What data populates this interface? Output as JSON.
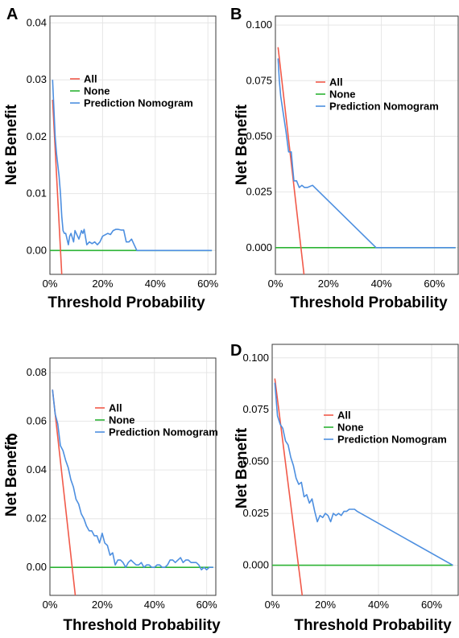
{
  "chart_data": [
    {
      "type": "line",
      "panel": "A",
      "xlabel": "Threshold Probability",
      "ylabel": "Net Benefit",
      "xlim": [
        0,
        0.63
      ],
      "ylim": [
        -0.0042,
        0.0412
      ],
      "xticks": [
        0,
        0.2,
        0.4,
        0.6
      ],
      "xtick_labels": [
        "0%",
        "20%",
        "40%",
        "60%"
      ],
      "yticks": [
        0.0,
        0.01,
        0.02,
        0.03,
        0.04
      ],
      "ytick_labels": [
        "0.00",
        "0.01",
        "0.02",
        "0.03",
        "0.04"
      ],
      "legend_position": "top-left",
      "series": [
        {
          "name": "All",
          "color": "#f15a4a",
          "x": [
            0.01,
            0.045
          ],
          "y": [
            0.0265,
            -0.0042
          ]
        },
        {
          "name": "None",
          "color": "#2cb334",
          "x": [
            0.0,
            0.615
          ],
          "y": [
            0.0,
            0.0
          ]
        },
        {
          "name": "Prediction Nomogram",
          "color": "#4d8fe0",
          "x": [
            0.01,
            0.015,
            0.02,
            0.025,
            0.03,
            0.035,
            0.04,
            0.045,
            0.05,
            0.055,
            0.06,
            0.07,
            0.075,
            0.08,
            0.09,
            0.095,
            0.1,
            0.11,
            0.12,
            0.125,
            0.13,
            0.14,
            0.15,
            0.16,
            0.17,
            0.18,
            0.19,
            0.2,
            0.22,
            0.23,
            0.24,
            0.25,
            0.26,
            0.27,
            0.28,
            0.29,
            0.3,
            0.31,
            0.32,
            0.33,
            0.615
          ],
          "y": [
            0.03,
            0.025,
            0.02,
            0.017,
            0.015,
            0.013,
            0.01,
            0.006,
            0.0035,
            0.003,
            0.003,
            0.001,
            0.0025,
            0.003,
            0.0015,
            0.0035,
            0.003,
            0.002,
            0.0035,
            0.003,
            0.0037,
            0.001,
            0.0015,
            0.0012,
            0.0015,
            0.001,
            0.0015,
            0.0025,
            0.003,
            0.0028,
            0.0035,
            0.0037,
            0.0037,
            0.0036,
            0.0036,
            0.0015,
            0.0015,
            0.002,
            0.001,
            0.0,
            0.0
          ]
        }
      ]
    },
    {
      "type": "line",
      "panel": "B",
      "xlabel": "Threshold Probability",
      "ylabel": "Net Benefit",
      "xlim": [
        0,
        0.69
      ],
      "ylim": [
        -0.012,
        0.104
      ],
      "xticks": [
        0,
        0.2,
        0.4,
        0.6
      ],
      "xtick_labels": [
        "0%",
        "20%",
        "40%",
        "60%"
      ],
      "yticks": [
        0.0,
        0.025,
        0.05,
        0.075,
        0.1
      ],
      "ytick_labels": [
        "0.000",
        "0.025",
        "0.050",
        "0.075",
        "0.100"
      ],
      "legend_position": "top-left",
      "series": [
        {
          "name": "All",
          "color": "#f15a4a",
          "x": [
            0.01,
            0.108
          ],
          "y": [
            0.09,
            -0.012
          ]
        },
        {
          "name": "None",
          "color": "#2cb334",
          "x": [
            0.0,
            0.68
          ],
          "y": [
            0.0,
            0.0
          ]
        },
        {
          "name": "Prediction Nomogram",
          "color": "#4d8fe0",
          "x": [
            0.01,
            0.015,
            0.02,
            0.03,
            0.04,
            0.05,
            0.06,
            0.065,
            0.07,
            0.08,
            0.09,
            0.1,
            0.11,
            0.12,
            0.14,
            0.38,
            0.68
          ],
          "y": [
            0.085,
            0.075,
            0.068,
            0.06,
            0.052,
            0.043,
            0.043,
            0.036,
            0.03,
            0.03,
            0.027,
            0.028,
            0.027,
            0.027,
            0.028,
            0.0,
            0.0
          ]
        }
      ]
    },
    {
      "type": "line",
      "panel": "C",
      "xlabel": "Threshold Probability",
      "ylabel": "Net Benefit",
      "xlim": [
        0,
        0.635
      ],
      "ylim": [
        -0.0115,
        0.086
      ],
      "xticks": [
        0,
        0.2,
        0.4,
        0.6
      ],
      "xtick_labels": [
        "0%",
        "20%",
        "40%",
        "60%"
      ],
      "yticks": [
        0.0,
        0.02,
        0.04,
        0.06,
        0.08
      ],
      "ytick_labels": [
        "0.00",
        "0.02",
        "0.04",
        "0.06",
        "0.08"
      ],
      "legend_position": "top-left",
      "series": [
        {
          "name": "All",
          "color": "#f15a4a",
          "x": [
            0.01,
            0.097
          ],
          "y": [
            0.073,
            -0.0115
          ]
        },
        {
          "name": "None",
          "color": "#2cb334",
          "x": [
            0.0,
            0.625
          ],
          "y": [
            0.0,
            0.0
          ]
        },
        {
          "name": "Prediction Nomogram",
          "color": "#4d8fe0",
          "x": [
            0.01,
            0.02,
            0.03,
            0.04,
            0.05,
            0.06,
            0.07,
            0.08,
            0.09,
            0.1,
            0.11,
            0.12,
            0.13,
            0.14,
            0.15,
            0.16,
            0.17,
            0.18,
            0.19,
            0.2,
            0.21,
            0.22,
            0.23,
            0.24,
            0.25,
            0.26,
            0.27,
            0.28,
            0.29,
            0.3,
            0.31,
            0.32,
            0.33,
            0.34,
            0.35,
            0.36,
            0.37,
            0.38,
            0.39,
            0.4,
            0.41,
            0.42,
            0.43,
            0.44,
            0.45,
            0.46,
            0.47,
            0.48,
            0.49,
            0.5,
            0.51,
            0.52,
            0.53,
            0.54,
            0.55,
            0.56,
            0.57,
            0.58,
            0.59,
            0.6,
            0.61,
            0.625
          ],
          "y": [
            0.073,
            0.063,
            0.059,
            0.05,
            0.048,
            0.044,
            0.041,
            0.036,
            0.033,
            0.028,
            0.026,
            0.022,
            0.02,
            0.017,
            0.015,
            0.015,
            0.013,
            0.013,
            0.01,
            0.014,
            0.01,
            0.009,
            0.005,
            0.006,
            0.001,
            0.003,
            0.003,
            0.002,
            0.0,
            0.002,
            0.003,
            0.002,
            0.001,
            0.001,
            0.002,
            0.0,
            0.001,
            0.001,
            0.0,
            0.0,
            0.001,
            0.001,
            0.0,
            0.0,
            0.001,
            0.003,
            0.003,
            0.002,
            0.003,
            0.004,
            0.002,
            0.003,
            0.003,
            0.002,
            0.002,
            0.002,
            0.001,
            -0.001,
            0.0,
            -0.001,
            0.0,
            0.0
          ]
        }
      ]
    },
    {
      "type": "line",
      "panel": "D",
      "xlabel": "Threshold Probability",
      "ylabel": "Net Benefit",
      "xlim": [
        0,
        0.7
      ],
      "ylim": [
        -0.0145,
        0.1065
      ],
      "xticks": [
        0,
        0.2,
        0.4,
        0.6
      ],
      "xtick_labels": [
        "0%",
        "20%",
        "40%",
        "60%"
      ],
      "yticks": [
        0.0,
        0.025,
        0.05,
        0.075,
        0.1
      ],
      "ytick_labels": [
        "0.000",
        "0.025",
        "0.050",
        "0.075",
        "0.100"
      ],
      "legend_position": "top-left",
      "series": [
        {
          "name": "All",
          "color": "#f15a4a",
          "x": [
            0.01,
            0.113
          ],
          "y": [
            0.09,
            -0.0145
          ]
        },
        {
          "name": "None",
          "color": "#2cb334",
          "x": [
            0.0,
            0.68
          ],
          "y": [
            0.0,
            0.0
          ]
        },
        {
          "name": "Prediction Nomogram",
          "color": "#4d8fe0",
          "x": [
            0.01,
            0.02,
            0.03,
            0.04,
            0.05,
            0.06,
            0.07,
            0.08,
            0.09,
            0.1,
            0.11,
            0.12,
            0.13,
            0.14,
            0.15,
            0.16,
            0.17,
            0.18,
            0.19,
            0.2,
            0.21,
            0.22,
            0.23,
            0.24,
            0.25,
            0.26,
            0.27,
            0.28,
            0.29,
            0.3,
            0.31,
            0.32,
            0.68
          ],
          "y": [
            0.088,
            0.072,
            0.068,
            0.066,
            0.06,
            0.058,
            0.052,
            0.048,
            0.042,
            0.039,
            0.04,
            0.033,
            0.034,
            0.03,
            0.032,
            0.026,
            0.021,
            0.024,
            0.023,
            0.025,
            0.024,
            0.021,
            0.025,
            0.024,
            0.025,
            0.024,
            0.026,
            0.026,
            0.027,
            0.027,
            0.027,
            0.026,
            0.0
          ]
        }
      ]
    }
  ]
}
